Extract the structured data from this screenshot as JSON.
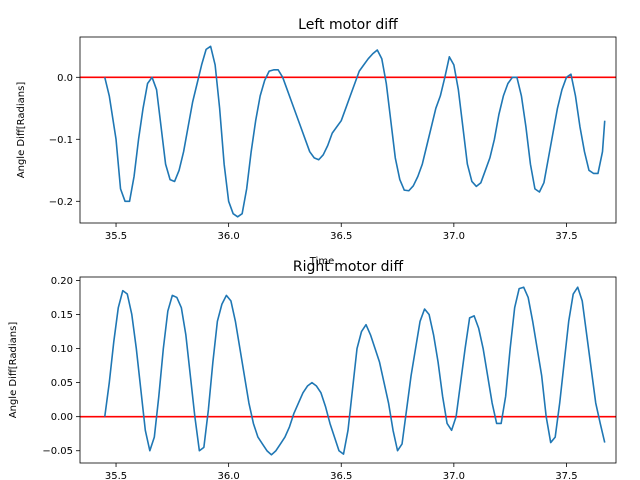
{
  "chart_data": [
    {
      "type": "line",
      "title": "Left motor diff",
      "xlabel": "Time",
      "ylabel": "Angle Diff[Radians]",
      "xlim": [
        35.34,
        37.72
      ],
      "ylim": [
        -0.235,
        0.065
      ],
      "xticks": [
        35.5,
        36.0,
        36.5,
        37.0,
        37.5
      ],
      "xtick_labels": [
        "35.5",
        "36.0",
        "36.5",
        "37.0",
        "37.5"
      ],
      "yticks": [
        0.0,
        -0.1,
        -0.2
      ],
      "ytick_labels": [
        "0.0",
        "−0.1",
        "−0.2"
      ],
      "grid": false,
      "hline": {
        "y": 0.0,
        "color": "#ff0000"
      },
      "series": [
        {
          "color": "#1f77b4",
          "x": [
            35.45,
            35.47,
            35.5,
            35.52,
            35.54,
            35.56,
            35.58,
            35.6,
            35.62,
            35.64,
            35.66,
            35.68,
            35.7,
            35.72,
            35.74,
            35.76,
            35.78,
            35.8,
            35.82,
            35.84,
            35.86,
            35.88,
            35.9,
            35.92,
            35.94,
            35.96,
            35.98,
            36.0,
            36.02,
            36.04,
            36.06,
            36.08,
            36.1,
            36.12,
            36.14,
            36.16,
            36.18,
            36.2,
            36.22,
            36.24,
            36.26,
            36.28,
            36.3,
            36.32,
            36.34,
            36.36,
            36.38,
            36.4,
            36.42,
            36.44,
            36.46,
            36.48,
            36.5,
            36.52,
            36.54,
            36.56,
            36.58,
            36.6,
            36.62,
            36.64,
            36.66,
            36.68,
            36.7,
            36.72,
            36.74,
            36.76,
            36.78,
            36.8,
            36.82,
            36.84,
            36.86,
            36.88,
            36.9,
            36.92,
            36.94,
            36.96,
            36.98,
            37.0,
            37.02,
            37.04,
            37.06,
            37.08,
            37.1,
            37.12,
            37.14,
            37.16,
            37.18,
            37.2,
            37.22,
            37.24,
            37.26,
            37.28,
            37.3,
            37.32,
            37.34,
            37.36,
            37.38,
            37.4,
            37.42,
            37.44,
            37.46,
            37.48,
            37.5,
            37.52,
            37.54,
            37.56,
            37.58,
            37.6,
            37.62,
            37.64,
            37.66,
            37.67
          ],
          "y": [
            0.0,
            -0.03,
            -0.1,
            -0.18,
            -0.2,
            -0.2,
            -0.16,
            -0.1,
            -0.05,
            -0.01,
            0.0,
            -0.02,
            -0.08,
            -0.14,
            -0.165,
            -0.168,
            -0.15,
            -0.12,
            -0.08,
            -0.04,
            -0.01,
            0.02,
            0.045,
            0.05,
            0.02,
            -0.05,
            -0.14,
            -0.2,
            -0.22,
            -0.225,
            -0.22,
            -0.18,
            -0.12,
            -0.07,
            -0.03,
            -0.005,
            0.01,
            0.012,
            0.012,
            0.0,
            -0.02,
            -0.04,
            -0.06,
            -0.08,
            -0.1,
            -0.12,
            -0.13,
            -0.133,
            -0.125,
            -0.11,
            -0.09,
            -0.08,
            -0.07,
            -0.05,
            -0.03,
            -0.01,
            0.01,
            0.02,
            0.03,
            0.038,
            0.044,
            0.03,
            -0.01,
            -0.07,
            -0.13,
            -0.165,
            -0.182,
            -0.183,
            -0.175,
            -0.16,
            -0.14,
            -0.11,
            -0.08,
            -0.05,
            -0.03,
            0.0,
            0.033,
            0.02,
            -0.02,
            -0.08,
            -0.14,
            -0.168,
            -0.176,
            -0.17,
            -0.15,
            -0.13,
            -0.1,
            -0.06,
            -0.03,
            -0.01,
            0.0,
            0.0,
            -0.03,
            -0.08,
            -0.14,
            -0.18,
            -0.185,
            -0.17,
            -0.13,
            -0.09,
            -0.05,
            -0.02,
            0.0,
            0.005,
            -0.03,
            -0.08,
            -0.12,
            -0.15,
            -0.155,
            -0.155,
            -0.12,
            -0.07
          ]
        }
      ]
    },
    {
      "type": "line",
      "title": "Right motor diff",
      "xlabel": "",
      "ylabel": "Angle Diff[Radians]",
      "xlim": [
        35.34,
        37.72
      ],
      "ylim": [
        -0.068,
        0.205
      ],
      "xticks": [
        35.5,
        36.0,
        36.5,
        37.0,
        37.5
      ],
      "xtick_labels": [
        "35.5",
        "36.0",
        "36.5",
        "37.0",
        "37.5"
      ],
      "yticks": [
        0.2,
        0.15,
        0.1,
        0.05,
        0.0,
        -0.05
      ],
      "ytick_labels": [
        "0.20",
        "0.15",
        "0.10",
        "0.05",
        "0.00",
        "−0.05"
      ],
      "grid": false,
      "hline": {
        "y": 0.0,
        "color": "#ff0000"
      },
      "series": [
        {
          "color": "#1f77b4",
          "x": [
            35.45,
            35.47,
            35.49,
            35.51,
            35.53,
            35.55,
            35.57,
            35.59,
            35.61,
            35.63,
            35.65,
            35.67,
            35.69,
            35.71,
            35.73,
            35.75,
            35.77,
            35.79,
            35.81,
            35.83,
            35.85,
            35.87,
            35.89,
            35.91,
            35.93,
            35.95,
            35.97,
            35.99,
            36.01,
            36.03,
            36.05,
            36.07,
            36.09,
            36.11,
            36.13,
            36.15,
            36.17,
            36.19,
            36.21,
            36.23,
            36.25,
            36.27,
            36.29,
            36.31,
            36.33,
            36.35,
            36.37,
            36.39,
            36.41,
            36.43,
            36.45,
            36.47,
            36.49,
            36.51,
            36.53,
            36.55,
            36.57,
            36.59,
            36.61,
            36.63,
            36.65,
            36.67,
            36.69,
            36.71,
            36.73,
            36.75,
            36.77,
            36.79,
            36.81,
            36.83,
            36.85,
            36.87,
            36.89,
            36.91,
            36.93,
            36.95,
            36.97,
            36.99,
            37.01,
            37.03,
            37.05,
            37.07,
            37.09,
            37.11,
            37.13,
            37.15,
            37.17,
            37.19,
            37.21,
            37.23,
            37.25,
            37.27,
            37.29,
            37.31,
            37.33,
            37.35,
            37.37,
            37.39,
            37.41,
            37.43,
            37.45,
            37.47,
            37.49,
            37.51,
            37.53,
            37.55,
            37.57,
            37.59,
            37.61,
            37.63,
            37.65,
            37.67
          ],
          "y": [
            0.0,
            0.05,
            0.11,
            0.16,
            0.185,
            0.18,
            0.15,
            0.1,
            0.04,
            -0.02,
            -0.05,
            -0.03,
            0.03,
            0.1,
            0.155,
            0.178,
            0.175,
            0.16,
            0.12,
            0.06,
            0.0,
            -0.05,
            -0.045,
            0.01,
            0.08,
            0.14,
            0.165,
            0.178,
            0.17,
            0.14,
            0.1,
            0.06,
            0.02,
            -0.01,
            -0.03,
            -0.04,
            -0.05,
            -0.056,
            -0.05,
            -0.04,
            -0.03,
            -0.015,
            0.005,
            0.02,
            0.035,
            0.045,
            0.05,
            0.045,
            0.035,
            0.015,
            -0.01,
            -0.03,
            -0.05,
            -0.055,
            -0.02,
            0.04,
            0.1,
            0.125,
            0.135,
            0.12,
            0.1,
            0.08,
            0.05,
            0.02,
            -0.02,
            -0.05,
            -0.04,
            0.01,
            0.06,
            0.1,
            0.14,
            0.158,
            0.15,
            0.12,
            0.08,
            0.03,
            -0.01,
            -0.02,
            0.0,
            0.05,
            0.1,
            0.145,
            0.148,
            0.13,
            0.1,
            0.06,
            0.02,
            -0.01,
            -0.01,
            0.03,
            0.1,
            0.16,
            0.188,
            0.19,
            0.175,
            0.14,
            0.1,
            0.06,
            0.0,
            -0.038,
            -0.03,
            0.02,
            0.08,
            0.14,
            0.18,
            0.19,
            0.17,
            0.12,
            0.07,
            0.02,
            -0.01,
            -0.038
          ]
        }
      ]
    }
  ]
}
